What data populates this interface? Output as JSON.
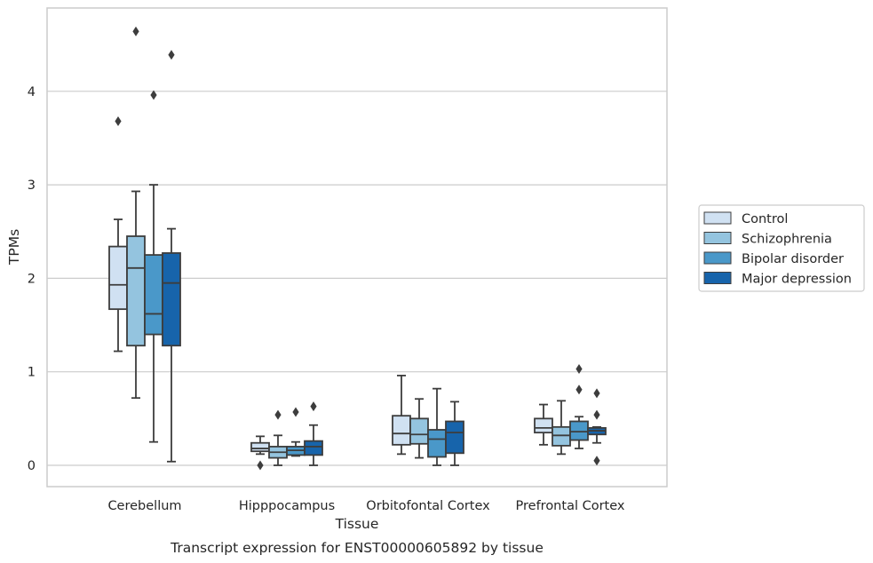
{
  "caption": "Transcript expression for ENST00000605892 by tissue",
  "chart_data": {
    "type": "boxplot",
    "title": "",
    "xlabel": "Tissue",
    "ylabel": "TPMs",
    "ylim": [
      -0.22,
      4.9
    ],
    "yticks": [
      0,
      1,
      2,
      3,
      4
    ],
    "grid": true,
    "legend_position": "right",
    "categories": [
      "Cerebellum",
      "Hipppocampus",
      "Orbitofontal Cortex",
      "Prefrontal Cortex"
    ],
    "series": [
      {
        "name": "Control",
        "color": "#d0e1f2",
        "boxes": [
          {
            "whisker_low": 1.22,
            "q1": 1.67,
            "median": 1.93,
            "q3": 2.34,
            "whisker_high": 2.63,
            "outliers": [
              3.68
            ]
          },
          {
            "whisker_low": 0.12,
            "q1": 0.15,
            "median": 0.18,
            "q3": 0.24,
            "whisker_high": 0.31,
            "outliers": [
              0.0
            ]
          },
          {
            "whisker_low": 0.12,
            "q1": 0.22,
            "median": 0.34,
            "q3": 0.53,
            "whisker_high": 0.96,
            "outliers": []
          },
          {
            "whisker_low": 0.22,
            "q1": 0.35,
            "median": 0.4,
            "q3": 0.5,
            "whisker_high": 0.65,
            "outliers": []
          }
        ]
      },
      {
        "name": "Schizophrenia",
        "color": "#94c4df",
        "boxes": [
          {
            "whisker_low": 0.72,
            "q1": 1.28,
            "median": 2.11,
            "q3": 2.45,
            "whisker_high": 2.93,
            "outliers": [
              4.64
            ]
          },
          {
            "whisker_low": 0.0,
            "q1": 0.08,
            "median": 0.14,
            "q3": 0.2,
            "whisker_high": 0.32,
            "outliers": [
              0.54
            ]
          },
          {
            "whisker_low": 0.08,
            "q1": 0.23,
            "median": 0.33,
            "q3": 0.5,
            "whisker_high": 0.71,
            "outliers": []
          },
          {
            "whisker_low": 0.12,
            "q1": 0.21,
            "median": 0.32,
            "q3": 0.41,
            "whisker_high": 0.69,
            "outliers": []
          }
        ]
      },
      {
        "name": "Bipolar disorder",
        "color": "#4a98c9",
        "boxes": [
          {
            "whisker_low": 0.25,
            "q1": 1.4,
            "median": 1.62,
            "q3": 2.25,
            "whisker_high": 3.0,
            "outliers": [
              3.96
            ]
          },
          {
            "whisker_low": 0.1,
            "q1": 0.11,
            "median": 0.16,
            "q3": 0.2,
            "whisker_high": 0.25,
            "outliers": [
              0.57
            ]
          },
          {
            "whisker_low": 0.0,
            "q1": 0.09,
            "median": 0.28,
            "q3": 0.38,
            "whisker_high": 0.82,
            "outliers": []
          },
          {
            "whisker_low": 0.18,
            "q1": 0.27,
            "median": 0.36,
            "q3": 0.47,
            "whisker_high": 0.52,
            "outliers": [
              0.81,
              1.03
            ]
          }
        ]
      },
      {
        "name": "Major depression",
        "color": "#1764ab",
        "boxes": [
          {
            "whisker_low": 0.04,
            "q1": 1.28,
            "median": 1.95,
            "q3": 2.27,
            "whisker_high": 2.53,
            "outliers": [
              4.39
            ]
          },
          {
            "whisker_low": 0.0,
            "q1": 0.11,
            "median": 0.2,
            "q3": 0.26,
            "whisker_high": 0.43,
            "outliers": [
              0.63
            ]
          },
          {
            "whisker_low": 0.0,
            "q1": 0.13,
            "median": 0.35,
            "q3": 0.47,
            "whisker_high": 0.68,
            "outliers": []
          },
          {
            "whisker_low": 0.24,
            "q1": 0.33,
            "median": 0.37,
            "q3": 0.4,
            "whisker_high": 0.41,
            "outliers": [
              0.05,
              0.54,
              0.77
            ]
          }
        ]
      }
    ],
    "colors": {
      "box_edge": "#3d3d3d",
      "grid": "#cccccc",
      "frame": "#cccccc",
      "text": "#262626"
    }
  }
}
